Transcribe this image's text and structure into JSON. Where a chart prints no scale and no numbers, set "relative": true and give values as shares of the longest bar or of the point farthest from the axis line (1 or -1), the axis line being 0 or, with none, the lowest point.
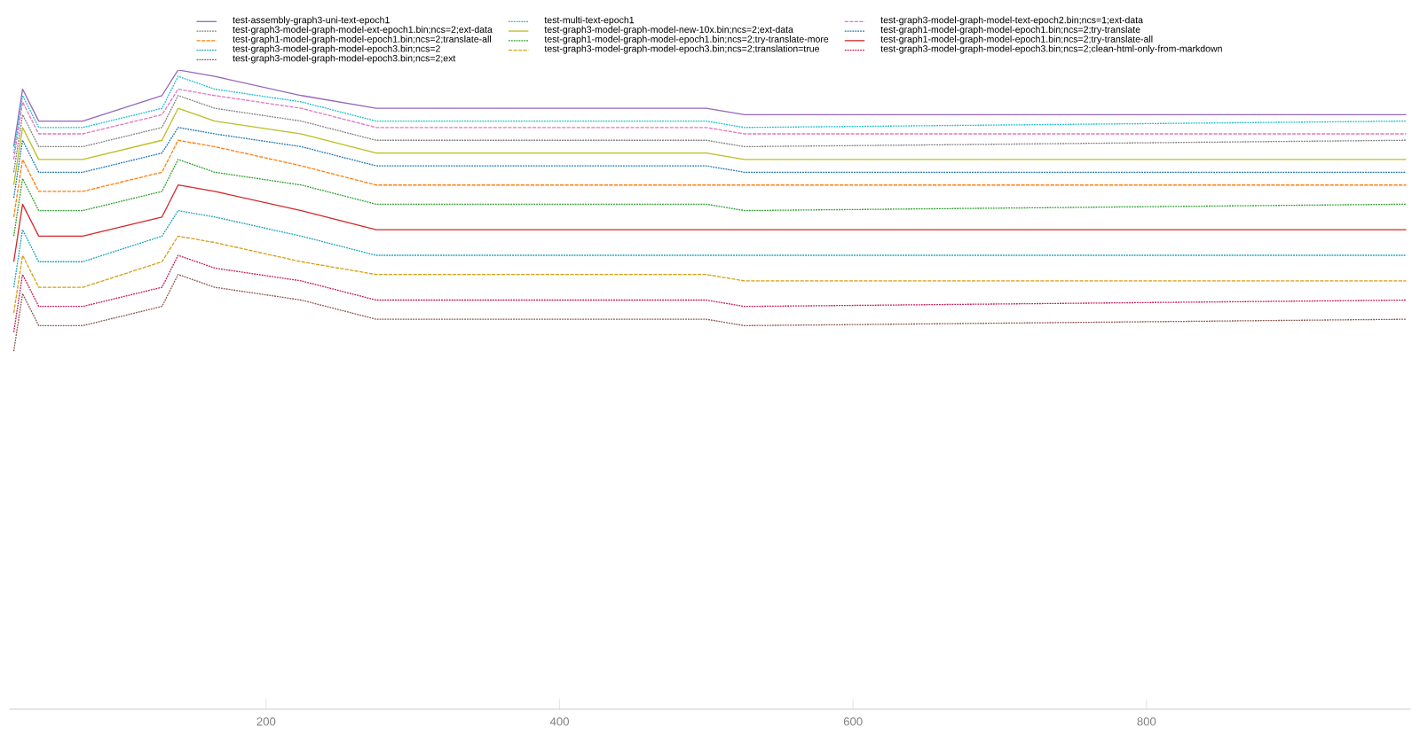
{
  "chart_data": {
    "type": "line",
    "relative": true,
    "legend": "top",
    "xlim": [
      25,
      980
    ],
    "xticks": [
      200,
      400,
      600,
      800
    ],
    "x": [
      28,
      34,
      45,
      75,
      129,
      140,
      165,
      224,
      275,
      500,
      526,
      977
    ],
    "series": [
      {
        "name": "test-assembly-graph3-uni-text-epoch1",
        "color": "#9467bd",
        "line_style": "solid",
        "values": [
          0.88,
          0.97,
          0.92,
          0.92,
          0.96,
          1,
          0.99,
          0.96,
          0.94,
          0.94,
          0.93,
          0.93
        ]
      },
      {
        "name": "test-multi-text-epoch1",
        "color": "#17becf",
        "line_style": "dotted",
        "values": [
          0.87,
          0.96,
          0.91,
          0.91,
          0.94,
          0.99,
          0.97,
          0.95,
          0.92,
          0.92,
          0.91,
          0.92
        ]
      },
      {
        "name": "test-graph3-model-graph-model-text-epoch2.bin;ncs=1;ext-data",
        "color": "#e377c2",
        "line_style": "dashed",
        "values": [
          0.86,
          0.95,
          0.9,
          0.9,
          0.93,
          0.97,
          0.96,
          0.94,
          0.91,
          0.91,
          0.9,
          0.9
        ]
      },
      {
        "name": "test-graph3-model-graph-model-ext-epoch1.bin;ncs=2;ext-data",
        "color": "#7f7f7f",
        "line_style": "dotted",
        "values": [
          0.84,
          0.93,
          0.88,
          0.88,
          0.91,
          0.96,
          0.94,
          0.92,
          0.89,
          0.89,
          0.88,
          0.89
        ]
      },
      {
        "name": "test-graph3-model-graph-model-new-10x.bin;ncs=2;ext-data",
        "color": "#bcbd22",
        "line_style": "solid",
        "values": [
          0.82,
          0.91,
          0.86,
          0.86,
          0.89,
          0.94,
          0.92,
          0.9,
          0.87,
          0.87,
          0.86,
          0.86
        ]
      },
      {
        "name": "test-graph1-model-graph-model-epoch1.bin;ncs=2;try-translate",
        "color": "#1f77b4",
        "line_style": "dotted",
        "values": [
          0.8,
          0.89,
          0.84,
          0.84,
          0.87,
          0.91,
          0.9,
          0.88,
          0.85,
          0.85,
          0.84,
          0.84
        ]
      },
      {
        "name": "test-graph1-model-graph-model-epoch1.bin;ncs=2;translate-all",
        "color": "#ff7f0e",
        "line_style": "dashed",
        "values": [
          0.77,
          0.86,
          0.81,
          0.81,
          0.84,
          0.89,
          0.88,
          0.85,
          0.82,
          0.82,
          0.82,
          0.82
        ]
      },
      {
        "name": "test-graph1-model-graph-model-epoch1.bin;ncs=2;try-translate-more",
        "color": "#2ca02c",
        "line_style": "dotted",
        "values": [
          0.74,
          0.83,
          0.78,
          0.78,
          0.81,
          0.86,
          0.84,
          0.82,
          0.79,
          0.79,
          0.78,
          0.79
        ]
      },
      {
        "name": "test-graph1-model-graph-model-epoch1.bin;ncs=2;try-translate-all",
        "color": "#d62728",
        "line_style": "solid",
        "values": [
          0.7,
          0.79,
          0.74,
          0.74,
          0.77,
          0.82,
          0.81,
          0.78,
          0.75,
          0.75,
          0.75,
          0.75
        ]
      },
      {
        "name": "test-graph3-model-graph-model-epoch3.bin;ncs=2",
        "color": "#17a2b8",
        "line_style": "dotted",
        "values": [
          0.66,
          0.75,
          0.7,
          0.7,
          0.74,
          0.78,
          0.77,
          0.74,
          0.71,
          0.71,
          0.71,
          0.71
        ]
      },
      {
        "name": "test-graph3-model-graph-model-epoch3.bin;ncs=2;translation=true",
        "color": "#d4a017",
        "line_style": "dashed",
        "values": [
          0.62,
          0.71,
          0.66,
          0.66,
          0.7,
          0.74,
          0.73,
          0.7,
          0.68,
          0.68,
          0.67,
          0.67
        ]
      },
      {
        "name": "test-graph3-model-graph-model-epoch3.bin;ncs=2;clean-html-only-from-markdown",
        "color": "#c2185b",
        "line_style": "dotted",
        "values": [
          0.59,
          0.68,
          0.63,
          0.63,
          0.66,
          0.71,
          0.69,
          0.67,
          0.64,
          0.64,
          0.63,
          0.64
        ]
      },
      {
        "name": "test-graph3-model-graph-model-epoch3.bin;ncs=2;ext",
        "color": "#8c564b",
        "line_style": "dotted",
        "values": [
          0.56,
          0.65,
          0.6,
          0.6,
          0.63,
          0.68,
          0.66,
          0.64,
          0.61,
          0.61,
          0.6,
          0.61
        ]
      }
    ]
  }
}
